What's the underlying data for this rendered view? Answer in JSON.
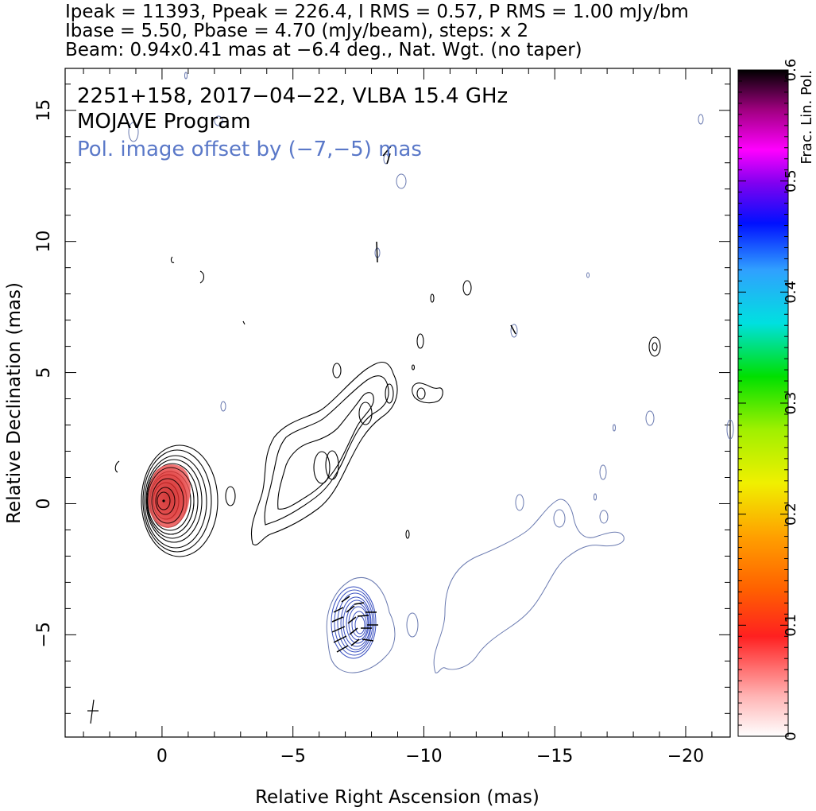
{
  "header": {
    "line1": "Ipeak = 11393, Ppeak = 226.4, I RMS = 0.57, P RMS = 1.00 mJy/bm",
    "line2": "Ibase = 5.50, Pbase = 4.70 (mJy/beam), steps: x 2",
    "line3": "Beam: 0.94x0.41 mas at −6.4 deg., Nat. Wgt. (no taper)"
  },
  "annotations": {
    "source": "2251+158, 2017−04−22, VLBA 15.4 GHz",
    "program": "MOJAVE Program",
    "pol_offset": "Pol. image offset by (−7,−5) mas",
    "pol_offset_color": "#5a78c8"
  },
  "axes": {
    "xlabel": "Relative Right Ascension (mas)",
    "ylabel": "Relative Declination (mas)",
    "xlim": [
      3.7,
      -21.7
    ],
    "ylim": [
      -8.9,
      16.6
    ],
    "xticks": [
      0,
      -5,
      -10,
      -15,
      -20
    ],
    "xtick_labels": [
      "0",
      "−5",
      "−10",
      "−15",
      "−20"
    ],
    "yticks": [
      -5,
      0,
      5,
      10,
      15
    ],
    "ytick_labels": [
      "−5",
      "0",
      "5",
      "10",
      "15"
    ]
  },
  "colorbar": {
    "label": "Frac. Lin. Pol.",
    "range": [
      0,
      0.6
    ],
    "ticks": [
      0,
      0.1,
      0.2,
      0.3,
      0.4,
      0.5,
      0.6
    ],
    "tick_labels": [
      "0",
      "0.1",
      "0.2",
      "0.3",
      "0.4",
      "0.5",
      "0.6"
    ]
  },
  "colors": {
    "stokes_i_contour": "#000000",
    "pol_contour": "#3a50c0",
    "pol_outer_contour": "#6a7ab0",
    "core_fill": "#e03030"
  }
}
